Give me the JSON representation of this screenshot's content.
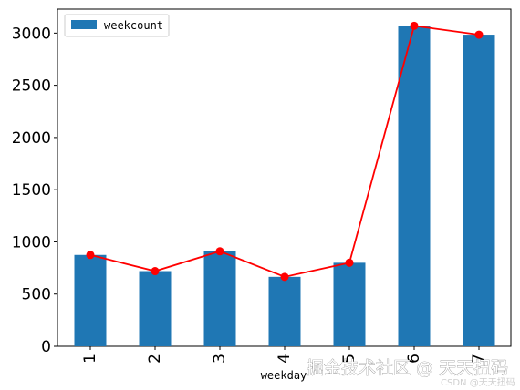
{
  "chart_data": {
    "type": "bar",
    "categories": [
      "1",
      "2",
      "3",
      "4",
      "5",
      "6",
      "7"
    ],
    "series": [
      {
        "name": "weekcount",
        "kind": "bar",
        "color": "#1f77b4",
        "values": [
          875,
          720,
          910,
          665,
          800,
          3070,
          2985
        ]
      },
      {
        "kind": "line",
        "color": "#ff0000",
        "marker": "circle",
        "values": [
          875,
          720,
          910,
          665,
          800,
          3070,
          2985
        ]
      }
    ],
    "xlabel": "weekday",
    "ylabel": "",
    "ylim": [
      0,
      3230
    ],
    "yticks": [
      0,
      500,
      1000,
      1500,
      2000,
      2500,
      3000
    ],
    "xtick_rotation": 90,
    "legend": {
      "position": "top-left",
      "entries": [
        "weekcount"
      ]
    },
    "grid": false
  },
  "watermark": {
    "main": "掘金技术社区 @ 天天扭码",
    "small": "CSDN @天天扭码"
  }
}
